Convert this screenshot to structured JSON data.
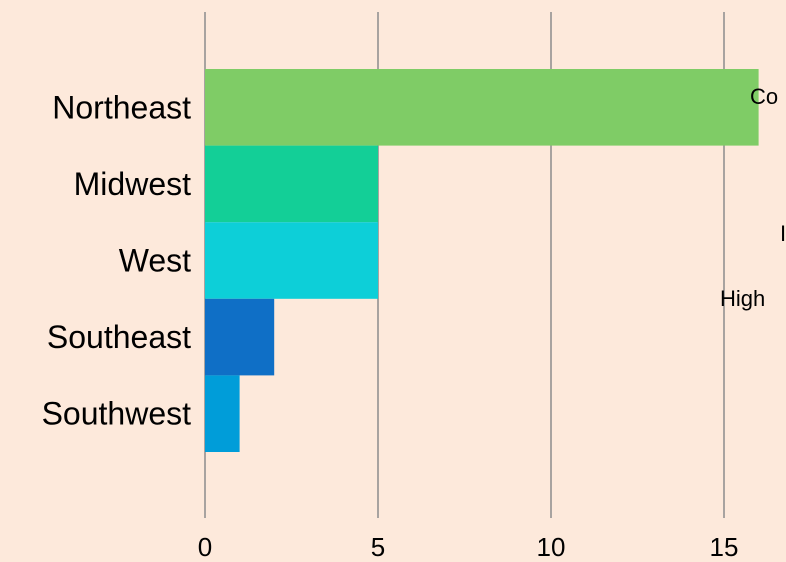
{
  "chart_data": {
    "type": "bar",
    "orientation": "horizontal",
    "title": "",
    "xlabel": "",
    "ylabel": "",
    "categories": [
      "Northeast",
      "Midwest",
      "West",
      "Southeast",
      "Southwest"
    ],
    "values": [
      16,
      5,
      5,
      2,
      1
    ],
    "colors": [
      "#7fcc66",
      "#13cf97",
      "#0dcfd8",
      "#0f6fc6",
      "#009dd9"
    ],
    "xlim": [
      0,
      17
    ],
    "xticks": [
      0,
      5,
      10,
      15
    ],
    "xtick_labels": [
      "0",
      "5",
      "10",
      "15"
    ],
    "grid": "vertical",
    "legend": "none",
    "annotations": [
      "Co",
      "I",
      "High"
    ]
  },
  "style": {
    "background": "#fde9db",
    "gridline_color": "#8c8c8c"
  }
}
